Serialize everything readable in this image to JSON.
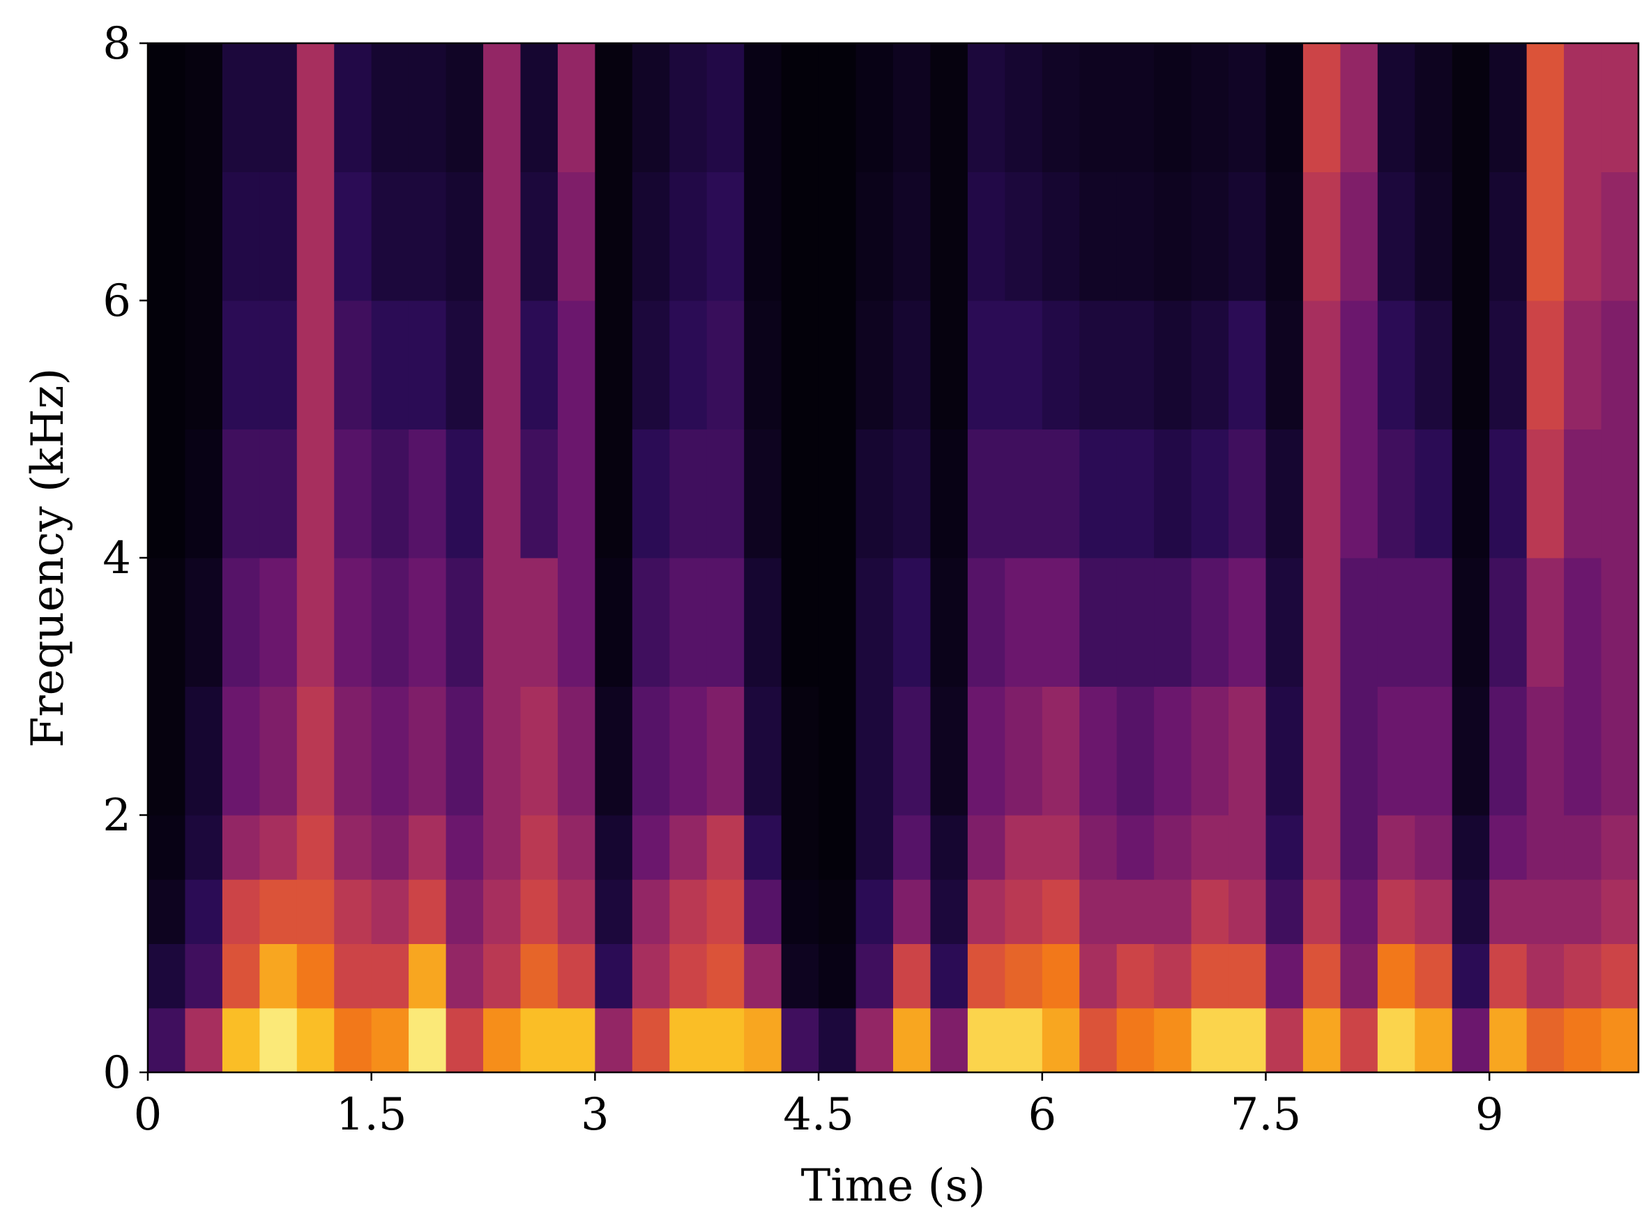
{
  "chart_data": {
    "type": "spectrogram",
    "colormap": "inferno",
    "xlabel": "Time (s)",
    "ylabel": "Frequency (kHz)",
    "xlim": [
      0,
      10
    ],
    "ylim": [
      0,
      8
    ],
    "xticks": [
      0,
      1.5,
      3,
      4.5,
      6,
      7.5,
      9
    ],
    "yticks": [
      0,
      2,
      4,
      6,
      8
    ],
    "xbins": [
      0,
      0.25,
      0.5,
      0.75,
      1,
      1.25,
      1.5,
      1.75,
      2,
      2.25,
      2.5,
      2.75,
      3,
      3.25,
      3.5,
      3.75,
      4,
      4.25,
      4.5,
      4.75,
      5,
      5.25,
      5.5,
      5.75,
      6,
      6.25,
      6.5,
      6.75,
      7,
      7.25,
      7.5,
      7.75,
      8,
      8.25,
      8.5,
      8.75,
      9,
      9.25,
      9.5,
      9.75,
      10
    ],
    "ybins": [
      0,
      0.5,
      1,
      1.5,
      2,
      3,
      4,
      5,
      6,
      7,
      8
    ],
    "zlim": [
      0,
      100
    ],
    "values": [
      [
        20,
        10,
        5,
        3,
        2,
        2,
        1,
        1,
        1,
        1
      ],
      [
        45,
        20,
        15,
        10,
        8,
        5,
        3,
        2,
        2,
        2
      ],
      [
        85,
        60,
        55,
        40,
        30,
        25,
        20,
        15,
        12,
        10
      ],
      [
        95,
        80,
        60,
        45,
        35,
        30,
        20,
        15,
        12,
        10
      ],
      [
        85,
        70,
        60,
        55,
        50,
        45,
        45,
        45,
        45,
        45
      ],
      [
        70,
        55,
        50,
        40,
        35,
        30,
        25,
        20,
        15,
        12
      ],
      [
        75,
        55,
        45,
        35,
        30,
        25,
        20,
        15,
        10,
        8
      ],
      [
        95,
        80,
        55,
        45,
        35,
        30,
        25,
        15,
        10,
        8
      ],
      [
        55,
        40,
        35,
        30,
        25,
        20,
        15,
        10,
        8,
        6
      ],
      [
        75,
        50,
        45,
        40,
        40,
        40,
        40,
        40,
        40,
        40
      ],
      [
        85,
        65,
        55,
        50,
        45,
        40,
        20,
        15,
        10,
        8
      ],
      [
        85,
        55,
        45,
        40,
        35,
        30,
        30,
        30,
        35,
        40
      ],
      [
        40,
        15,
        10,
        8,
        5,
        3,
        2,
        2,
        2,
        2
      ],
      [
        60,
        45,
        40,
        30,
        25,
        20,
        15,
        10,
        8,
        6
      ],
      [
        85,
        55,
        50,
        40,
        30,
        25,
        20,
        15,
        12,
        10
      ],
      [
        85,
        60,
        55,
        50,
        35,
        25,
        20,
        18,
        15,
        12
      ],
      [
        80,
        40,
        25,
        15,
        10,
        8,
        5,
        4,
        3,
        3
      ],
      [
        20,
        5,
        3,
        2,
        2,
        1,
        1,
        1,
        1,
        1
      ],
      [
        10,
        3,
        2,
        1,
        1,
        1,
        1,
        1,
        1,
        1
      ],
      [
        40,
        20,
        15,
        10,
        10,
        10,
        8,
        5,
        4,
        3
      ],
      [
        80,
        55,
        35,
        25,
        20,
        15,
        10,
        8,
        6,
        5
      ],
      [
        35,
        15,
        10,
        8,
        5,
        4,
        3,
        2,
        2,
        2
      ],
      [
        90,
        60,
        45,
        35,
        30,
        25,
        20,
        15,
        12,
        10
      ],
      [
        90,
        65,
        50,
        45,
        35,
        30,
        20,
        15,
        10,
        8
      ],
      [
        80,
        70,
        55,
        45,
        40,
        30,
        20,
        12,
        8,
        6
      ],
      [
        60,
        45,
        40,
        35,
        30,
        20,
        15,
        10,
        6,
        5
      ],
      [
        70,
        55,
        40,
        30,
        25,
        20,
        15,
        10,
        6,
        5
      ],
      [
        75,
        50,
        40,
        35,
        30,
        20,
        12,
        8,
        5,
        4
      ],
      [
        90,
        60,
        50,
        40,
        35,
        25,
        15,
        10,
        6,
        5
      ],
      [
        90,
        60,
        45,
        40,
        40,
        30,
        20,
        15,
        8,
        6
      ],
      [
        50,
        30,
        20,
        15,
        12,
        10,
        8,
        5,
        4,
        3
      ],
      [
        80,
        60,
        50,
        45,
        45,
        45,
        45,
        45,
        50,
        55
      ],
      [
        55,
        35,
        30,
        25,
        25,
        25,
        30,
        30,
        35,
        40
      ],
      [
        90,
        70,
        50,
        40,
        30,
        25,
        20,
        15,
        10,
        8
      ],
      [
        80,
        60,
        45,
        35,
        30,
        25,
        15,
        10,
        6,
        5
      ],
      [
        30,
        15,
        10,
        8,
        5,
        4,
        3,
        2,
        2,
        2
      ],
      [
        80,
        55,
        40,
        30,
        25,
        20,
        15,
        10,
        8,
        6
      ],
      [
        65,
        45,
        40,
        35,
        35,
        40,
        50,
        55,
        60,
        60
      ],
      [
        70,
        50,
        40,
        35,
        30,
        30,
        35,
        40,
        45,
        45
      ],
      [
        75,
        55,
        45,
        40,
        35,
        35,
        35,
        35,
        40,
        45
      ]
    ]
  }
}
